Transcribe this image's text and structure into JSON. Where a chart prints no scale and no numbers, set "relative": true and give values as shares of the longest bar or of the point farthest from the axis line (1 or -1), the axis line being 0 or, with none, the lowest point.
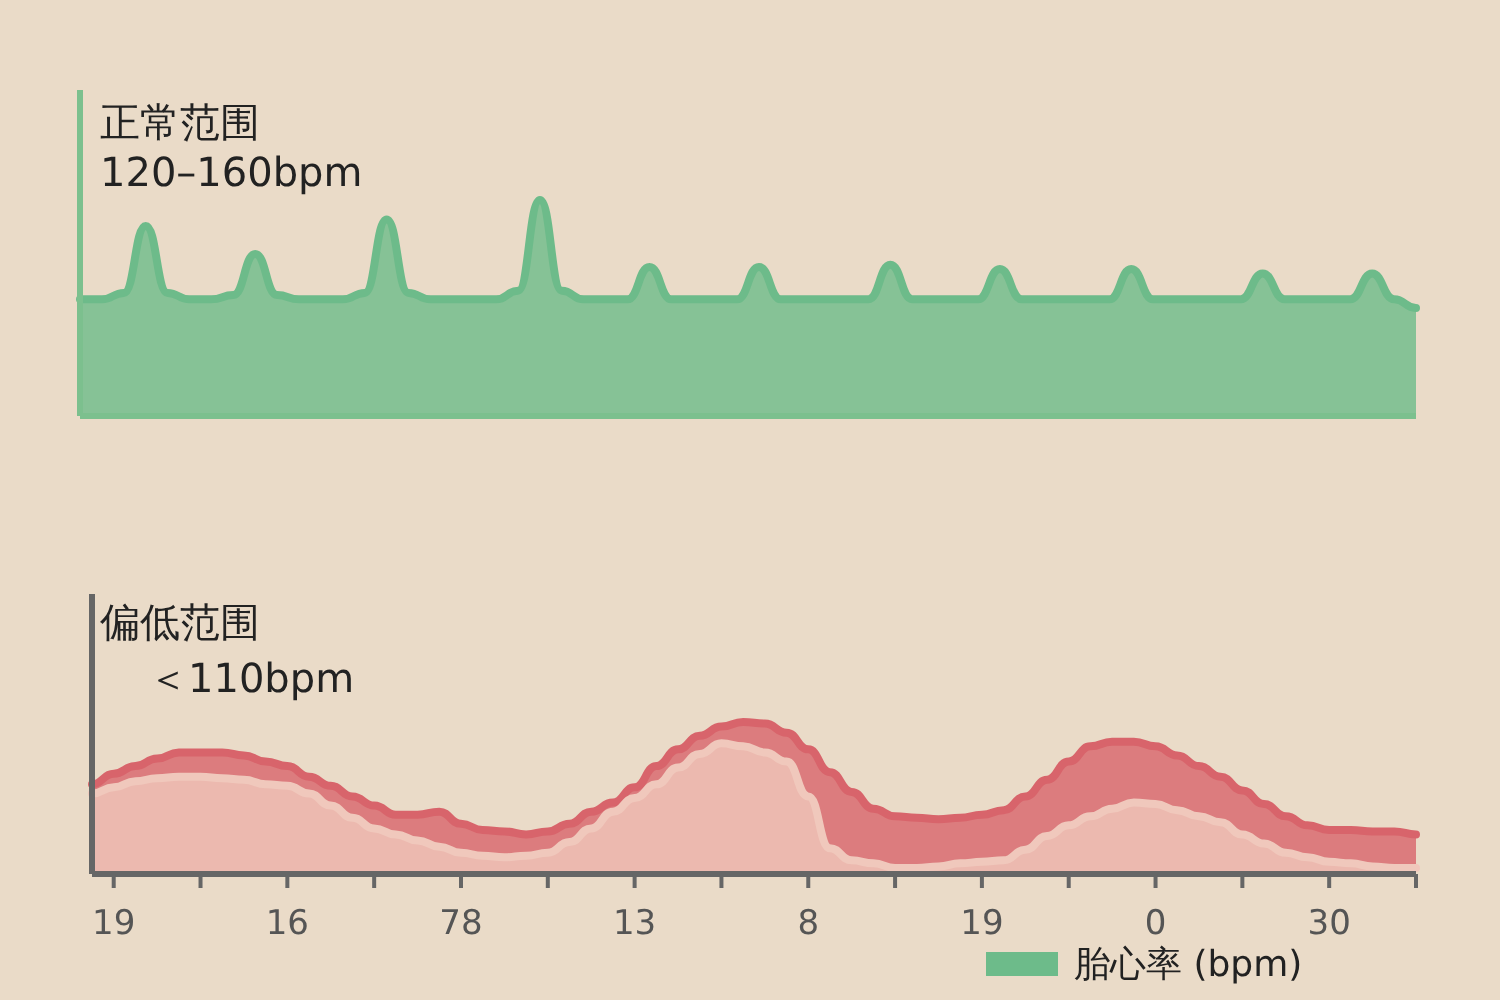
{
  "chart_data": [
    {
      "type": "area",
      "relative": true,
      "tick_labels": false,
      "legend": "bottom",
      "annotations": [
        "正常范围",
        "120–160bpm"
      ],
      "categories": [
        null,
        null,
        null,
        null,
        null,
        null,
        null,
        null,
        null,
        null,
        null,
        null,
        null,
        null,
        null,
        null,
        null,
        null,
        null,
        null,
        null,
        null,
        null,
        null,
        null,
        null,
        null,
        null,
        null,
        null,
        null,
        null,
        null,
        null,
        null,
        null,
        null,
        null,
        null,
        null,
        null,
        null,
        null,
        null,
        null,
        null,
        null,
        null,
        null,
        null,
        null,
        null,
        null,
        null,
        null,
        null,
        null,
        null,
        null,
        null,
        null,
        null
      ],
      "series": [
        {
          "name": "胎心率 (bpm)",
          "color": "#6dbb8a",
          "values": [
            0.54,
            0.54,
            0.57,
            0.88,
            0.57,
            0.54,
            0.54,
            0.56,
            0.75,
            0.56,
            0.54,
            0.54,
            0.54,
            0.57,
            0.91,
            0.57,
            0.54,
            0.54,
            0.54,
            0.54,
            0.58,
            1,
            0.58,
            0.54,
            0.54,
            0.54,
            0.69,
            0.54,
            0.54,
            0.54,
            0.54,
            0.69,
            0.54,
            0.54,
            0.54,
            0.54,
            0.54,
            0.7,
            0.54,
            0.54,
            0.54,
            0.54,
            0.68,
            0.54,
            0.54,
            0.54,
            0.54,
            0.54,
            0.68,
            0.54,
            0.54,
            0.54,
            0.54,
            0.54,
            0.66,
            0.54,
            0.54,
            0.54,
            0.54,
            0.66,
            0.54,
            0.5
          ]
        }
      ]
    },
    {
      "type": "area",
      "relative": true,
      "tick_labels": "x",
      "annotations": [
        "偏低范围",
        "＜110bpm"
      ],
      "categories": [
        null,
        "19",
        null,
        null,
        null,
        null,
        null,
        null,
        null,
        "16",
        null,
        null,
        null,
        null,
        null,
        null,
        null,
        "78",
        null,
        null,
        null,
        null,
        null,
        null,
        null,
        "13",
        null,
        null,
        null,
        null,
        null,
        null,
        null,
        "8",
        null,
        null,
        null,
        null,
        null,
        null,
        null,
        "19",
        null,
        null,
        null,
        null,
        null,
        null,
        null,
        "0",
        null,
        null,
        null,
        null,
        null,
        null,
        null,
        "30",
        null,
        null,
        null,
        null
      ],
      "series": [
        {
          "color": "#d8646b",
          "values": [
            0.59,
            0.66,
            0.71,
            0.76,
            0.8,
            0.8,
            0.8,
            0.78,
            0.74,
            0.71,
            0.64,
            0.58,
            0.51,
            0.45,
            0.39,
            0.39,
            0.41,
            0.33,
            0.29,
            0.28,
            0.26,
            0.28,
            0.33,
            0.41,
            0.47,
            0.57,
            0.71,
            0.82,
            0.91,
            0.97,
            1,
            0.99,
            0.93,
            0.82,
            0.67,
            0.54,
            0.43,
            0.38,
            0.37,
            0.36,
            0.37,
            0.39,
            0.42,
            0.51,
            0.62,
            0.74,
            0.84,
            0.87,
            0.87,
            0.84,
            0.78,
            0.71,
            0.64,
            0.55,
            0.46,
            0.38,
            0.32,
            0.29,
            0.29,
            0.28,
            0.28,
            0.26
          ]
        },
        {
          "color": "#f0c8bc",
          "values": [
            0.53,
            0.57,
            0.61,
            0.63,
            0.64,
            0.64,
            0.63,
            0.62,
            0.59,
            0.58,
            0.53,
            0.45,
            0.37,
            0.3,
            0.26,
            0.22,
            0.18,
            0.14,
            0.12,
            0.11,
            0.12,
            0.14,
            0.21,
            0.3,
            0.41,
            0.5,
            0.59,
            0.7,
            0.79,
            0.86,
            0.84,
            0.8,
            0.74,
            0.51,
            0.17,
            0.09,
            0.07,
            0.04,
            0.04,
            0.05,
            0.07,
            0.08,
            0.09,
            0.16,
            0.25,
            0.32,
            0.38,
            0.43,
            0.47,
            0.46,
            0.42,
            0.38,
            0.34,
            0.26,
            0.2,
            0.14,
            0.11,
            0.08,
            0.07,
            0.05,
            0.04,
            0.04
          ]
        }
      ]
    }
  ]
}
